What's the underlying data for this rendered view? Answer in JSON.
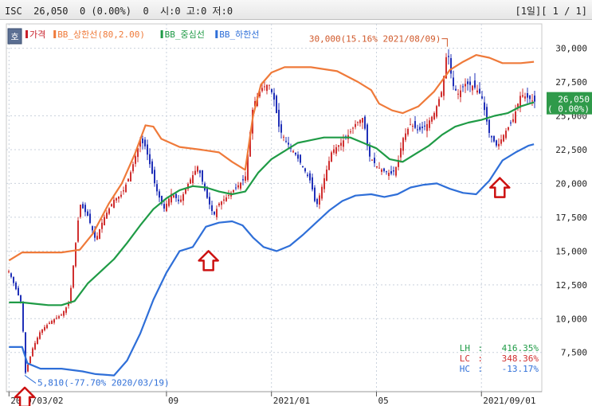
{
  "header": {
    "symbol": "ISC",
    "price": "26,050",
    "change": "0 (0.00%)",
    "volume": "0",
    "ohlc": "시:0 고:0 저:0",
    "pager": "[1일][ 1 / 1]"
  },
  "colors": {
    "candle_up": "#d03030",
    "candle_down": "#2030b8",
    "upper_band": "#ef7a3a",
    "middle_band": "#1f9b46",
    "lower_band": "#2f6fd8",
    "price_tag": "#2f9a4a",
    "arrow": "#cc1111"
  },
  "legend_button": "호",
  "chart_data": {
    "type": "line",
    "legend": [
      {
        "name": "가격",
        "color": "#c8202a"
      },
      {
        "name": "BB_상한선(80,2.00)",
        "color": "#ef7a3a"
      },
      {
        "name": "BB_중심선",
        "color": "#1f9b46"
      },
      {
        "name": "BB_하한선",
        "color": "#2f6fd8"
      }
    ],
    "x_ticks": [
      "2020/03/02",
      "09",
      "2021/01",
      "05",
      "2021/09/01"
    ],
    "x_tick_months": [
      0,
      6,
      10,
      14,
      18
    ],
    "y_ticks": [
      7500,
      10000,
      12500,
      15000,
      17500,
      20000,
      22500,
      25000,
      27500,
      30000
    ],
    "y_tick_labels": [
      "7,500",
      "10,000",
      "12,500",
      "15,000",
      "17,500",
      "20,000",
      "22,500",
      "25,000",
      "27,500",
      "30,000"
    ],
    "ylim": [
      4600,
      31800
    ],
    "xlim_months": [
      -0.1,
      20.3
    ],
    "price": [
      [
        0,
        13500
      ],
      [
        0.5,
        11000
      ],
      [
        0.6,
        5810
      ],
      [
        0.9,
        7800
      ],
      [
        1.2,
        9100
      ],
      [
        1.6,
        9800
      ],
      [
        2.0,
        10300
      ],
      [
        2.3,
        11200
      ],
      [
        2.7,
        18500
      ],
      [
        3.0,
        17600
      ],
      [
        3.3,
        15800
      ],
      [
        3.6,
        17400
      ],
      [
        4.0,
        18800
      ],
      [
        4.3,
        19200
      ],
      [
        4.6,
        20600
      ],
      [
        5.0,
        23200
      ],
      [
        5.2,
        22700
      ],
      [
        5.6,
        19600
      ],
      [
        5.9,
        18100
      ],
      [
        6.2,
        19300
      ],
      [
        6.5,
        18600
      ],
      [
        6.8,
        19900
      ],
      [
        7.2,
        21300
      ],
      [
        7.5,
        19200
      ],
      [
        7.8,
        17600
      ],
      [
        8.0,
        18500
      ],
      [
        8.3,
        19000
      ],
      [
        8.6,
        19600
      ],
      [
        9.0,
        20400
      ],
      [
        9.3,
        25800
      ],
      [
        9.6,
        27000
      ],
      [
        9.9,
        27400
      ],
      [
        10.1,
        26200
      ],
      [
        10.3,
        24000
      ],
      [
        10.6,
        23000
      ],
      [
        10.9,
        22200
      ],
      [
        11.2,
        21200
      ],
      [
        11.5,
        20100
      ],
      [
        11.7,
        18200
      ],
      [
        12.0,
        20300
      ],
      [
        12.3,
        22400
      ],
      [
        12.6,
        22900
      ],
      [
        12.9,
        23500
      ],
      [
        13.2,
        24400
      ],
      [
        13.5,
        24900
      ],
      [
        13.7,
        22100
      ],
      [
        14.0,
        21300
      ],
      [
        14.3,
        20900
      ],
      [
        14.6,
        20700
      ],
      [
        14.8,
        21400
      ],
      [
        15.0,
        23300
      ],
      [
        15.3,
        24400
      ],
      [
        15.6,
        23900
      ],
      [
        15.9,
        24300
      ],
      [
        16.2,
        25200
      ],
      [
        16.5,
        26900
      ],
      [
        16.7,
        30000
      ],
      [
        16.9,
        27300
      ],
      [
        17.1,
        26600
      ],
      [
        17.4,
        27400
      ],
      [
        17.7,
        27200
      ],
      [
        18.0,
        26500
      ],
      [
        18.3,
        23700
      ],
      [
        18.6,
        22700
      ],
      [
        18.9,
        23800
      ],
      [
        19.2,
        24700
      ],
      [
        19.5,
        26600
      ],
      [
        19.8,
        26300
      ],
      [
        20.0,
        26050
      ]
    ],
    "upper_band": [
      [
        0,
        14300
      ],
      [
        0.5,
        14900
      ],
      [
        1.0,
        14900
      ],
      [
        2.0,
        14900
      ],
      [
        2.7,
        15100
      ],
      [
        3.2,
        16300
      ],
      [
        3.8,
        18500
      ],
      [
        4.3,
        20000
      ],
      [
        4.8,
        22200
      ],
      [
        5.2,
        24300
      ],
      [
        5.5,
        24200
      ],
      [
        5.8,
        23300
      ],
      [
        6.5,
        22700
      ],
      [
        7.3,
        22500
      ],
      [
        8.0,
        22300
      ],
      [
        8.5,
        21600
      ],
      [
        9.0,
        21000
      ],
      [
        9.3,
        25000
      ],
      [
        9.6,
        27300
      ],
      [
        10.0,
        28200
      ],
      [
        10.5,
        28600
      ],
      [
        11.5,
        28600
      ],
      [
        12.5,
        28300
      ],
      [
        13.3,
        27500
      ],
      [
        13.8,
        26900
      ],
      [
        14.1,
        25900
      ],
      [
        14.6,
        25400
      ],
      [
        15.0,
        25200
      ],
      [
        15.6,
        25700
      ],
      [
        16.2,
        26800
      ],
      [
        16.8,
        28400
      ],
      [
        17.3,
        29000
      ],
      [
        17.8,
        29500
      ],
      [
        18.3,
        29300
      ],
      [
        18.8,
        28900
      ],
      [
        19.5,
        28900
      ],
      [
        20.0,
        29000
      ]
    ],
    "middle_band": [
      [
        0,
        11200
      ],
      [
        0.5,
        11200
      ],
      [
        1.0,
        11100
      ],
      [
        1.5,
        11000
      ],
      [
        2.0,
        11000
      ],
      [
        2.5,
        11300
      ],
      [
        3.0,
        12600
      ],
      [
        3.5,
        13500
      ],
      [
        4.0,
        14400
      ],
      [
        4.5,
        15600
      ],
      [
        5.0,
        16900
      ],
      [
        5.5,
        18100
      ],
      [
        6.0,
        18900
      ],
      [
        6.5,
        19500
      ],
      [
        7.0,
        19800
      ],
      [
        7.5,
        19700
      ],
      [
        8.0,
        19400
      ],
      [
        8.5,
        19200
      ],
      [
        9.0,
        19400
      ],
      [
        9.5,
        20800
      ],
      [
        10.0,
        21800
      ],
      [
        10.5,
        22400
      ],
      [
        11.0,
        23000
      ],
      [
        11.5,
        23200
      ],
      [
        12.0,
        23400
      ],
      [
        12.5,
        23400
      ],
      [
        13.0,
        23400
      ],
      [
        13.5,
        23000
      ],
      [
        14.0,
        22600
      ],
      [
        14.5,
        21800
      ],
      [
        15.0,
        21600
      ],
      [
        15.5,
        22200
      ],
      [
        16.0,
        22800
      ],
      [
        16.5,
        23600
      ],
      [
        17.0,
        24200
      ],
      [
        17.5,
        24500
      ],
      [
        18.0,
        24700
      ],
      [
        18.5,
        25000
      ],
      [
        19.0,
        25200
      ],
      [
        19.5,
        25700
      ],
      [
        20.0,
        26000
      ]
    ],
    "lower_band": [
      [
        0,
        7900
      ],
      [
        0.5,
        7900
      ],
      [
        0.7,
        6700
      ],
      [
        1.2,
        6300
      ],
      [
        2.0,
        6300
      ],
      [
        2.8,
        6100
      ],
      [
        3.3,
        5900
      ],
      [
        4.0,
        5800
      ],
      [
        4.5,
        6900
      ],
      [
        5.0,
        8900
      ],
      [
        5.5,
        11400
      ],
      [
        6.0,
        13400
      ],
      [
        6.5,
        15000
      ],
      [
        7.0,
        15300
      ],
      [
        7.5,
        16800
      ],
      [
        8.0,
        17100
      ],
      [
        8.5,
        17200
      ],
      [
        8.9,
        16900
      ],
      [
        9.3,
        16000
      ],
      [
        9.7,
        15300
      ],
      [
        10.2,
        15000
      ],
      [
        10.7,
        15400
      ],
      [
        11.2,
        16200
      ],
      [
        11.7,
        17100
      ],
      [
        12.2,
        18000
      ],
      [
        12.7,
        18700
      ],
      [
        13.2,
        19100
      ],
      [
        13.8,
        19200
      ],
      [
        14.3,
        19000
      ],
      [
        14.8,
        19200
      ],
      [
        15.3,
        19700
      ],
      [
        15.8,
        19900
      ],
      [
        16.3,
        20000
      ],
      [
        16.8,
        19600
      ],
      [
        17.3,
        19300
      ],
      [
        17.8,
        19200
      ],
      [
        18.3,
        20200
      ],
      [
        18.8,
        21700
      ],
      [
        19.3,
        22300
      ],
      [
        19.8,
        22800
      ],
      [
        20.0,
        22900
      ]
    ],
    "annotations": {
      "high": {
        "text": "30,000(15.16% 2021/08/09)",
        "x": 16.7,
        "y": 30000
      },
      "low": {
        "text": "5,810(-77.70% 2020/03/19)",
        "x": 0.6,
        "y": 5810
      }
    },
    "arrows_up": [
      [
        0.6,
        4900
      ],
      [
        7.6,
        15000
      ],
      [
        18.7,
        20400
      ]
    ],
    "price_tag": {
      "line1": "26,050",
      "line2": "( 0.00%)",
      "y": 26050
    },
    "stats": [
      {
        "label": "LH",
        "value": "416.35%",
        "color": "#1f9b46"
      },
      {
        "label": "LC",
        "value": "348.36%",
        "color": "#d03030"
      },
      {
        "label": "HC",
        "value": "-13.17%",
        "color": "#2f6fd8"
      }
    ],
    "grid": true
  }
}
